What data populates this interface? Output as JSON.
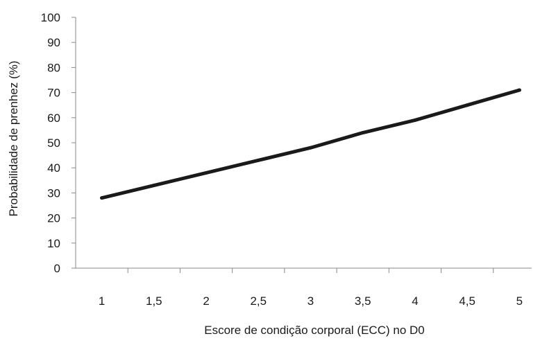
{
  "chart_data": {
    "type": "line",
    "title": "",
    "xlabel": "Escore de condição corporal (ECC) no D0",
    "ylabel": "Probabilidade de prenhez (%)",
    "x_tick_labels": [
      "1",
      "1,5",
      "2",
      "2,5",
      "3",
      "3,5",
      "4",
      "4,5",
      "5"
    ],
    "y_tick_labels": [
      "0",
      "10",
      "20",
      "30",
      "40",
      "50",
      "60",
      "70",
      "80",
      "90",
      "100"
    ],
    "xlim": [
      0.75,
      5.25
    ],
    "ylim": [
      0,
      100
    ],
    "grid": false,
    "legend": "none",
    "series": [
      {
        "color": "#1a1a1a",
        "x": [
          1,
          1.5,
          2,
          2.5,
          3,
          3.5,
          4,
          4.5,
          5
        ],
        "y": [
          28,
          33,
          38,
          43,
          48,
          54,
          59,
          65,
          71
        ]
      }
    ]
  }
}
